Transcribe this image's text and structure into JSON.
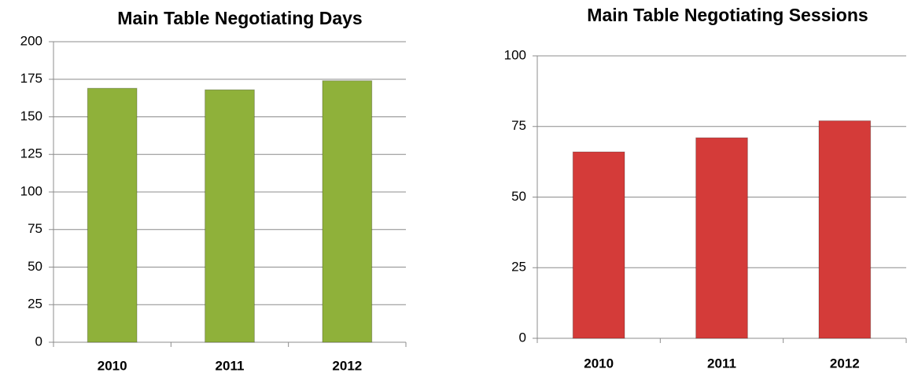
{
  "chart_data": [
    {
      "type": "bar",
      "title": "Main Table Negotiating Days",
      "categories": [
        "2010",
        "2011",
        "2012"
      ],
      "values": [
        169,
        168,
        174
      ],
      "color": "#8fb13a",
      "ylim": [
        0,
        200
      ],
      "yticks": [
        0,
        25,
        50,
        75,
        100,
        125,
        150,
        175,
        200
      ],
      "grid": true
    },
    {
      "type": "bar",
      "title": "Main Table Negotiating Sessions",
      "categories": [
        "2010",
        "2011",
        "2012"
      ],
      "values": [
        66,
        71,
        77
      ],
      "color": "#d43b39",
      "ylim": [
        0,
        100
      ],
      "yticks": [
        0,
        25,
        50,
        75,
        100
      ],
      "grid": true
    }
  ]
}
